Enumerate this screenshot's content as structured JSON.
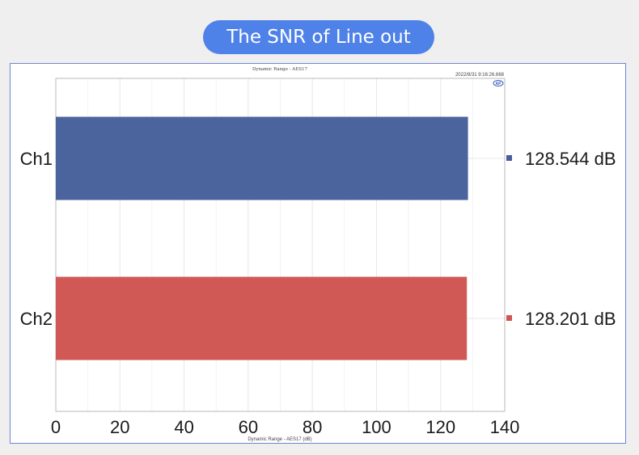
{
  "banner": {
    "title": "The SNR of Line out"
  },
  "chart_data": {
    "type": "bar",
    "orientation": "horizontal",
    "title": "Dynamic Range - AES17",
    "timestamp": "2022/8/31 9:16:26.668",
    "logo_text": "AP",
    "xlabel": "Dynamic Range - AES17 (dB)",
    "xlim": [
      0,
      140
    ],
    "xticks": [
      0,
      20,
      40,
      60,
      80,
      100,
      120,
      140
    ],
    "grid": true,
    "categories": [
      "Ch1",
      "Ch2"
    ],
    "values": [
      128.544,
      128.201
    ],
    "value_labels": [
      "128.544 dB",
      "128.201 dB"
    ],
    "colors": [
      "#465f9b",
      "#d05450"
    ],
    "legend_position": "right"
  }
}
